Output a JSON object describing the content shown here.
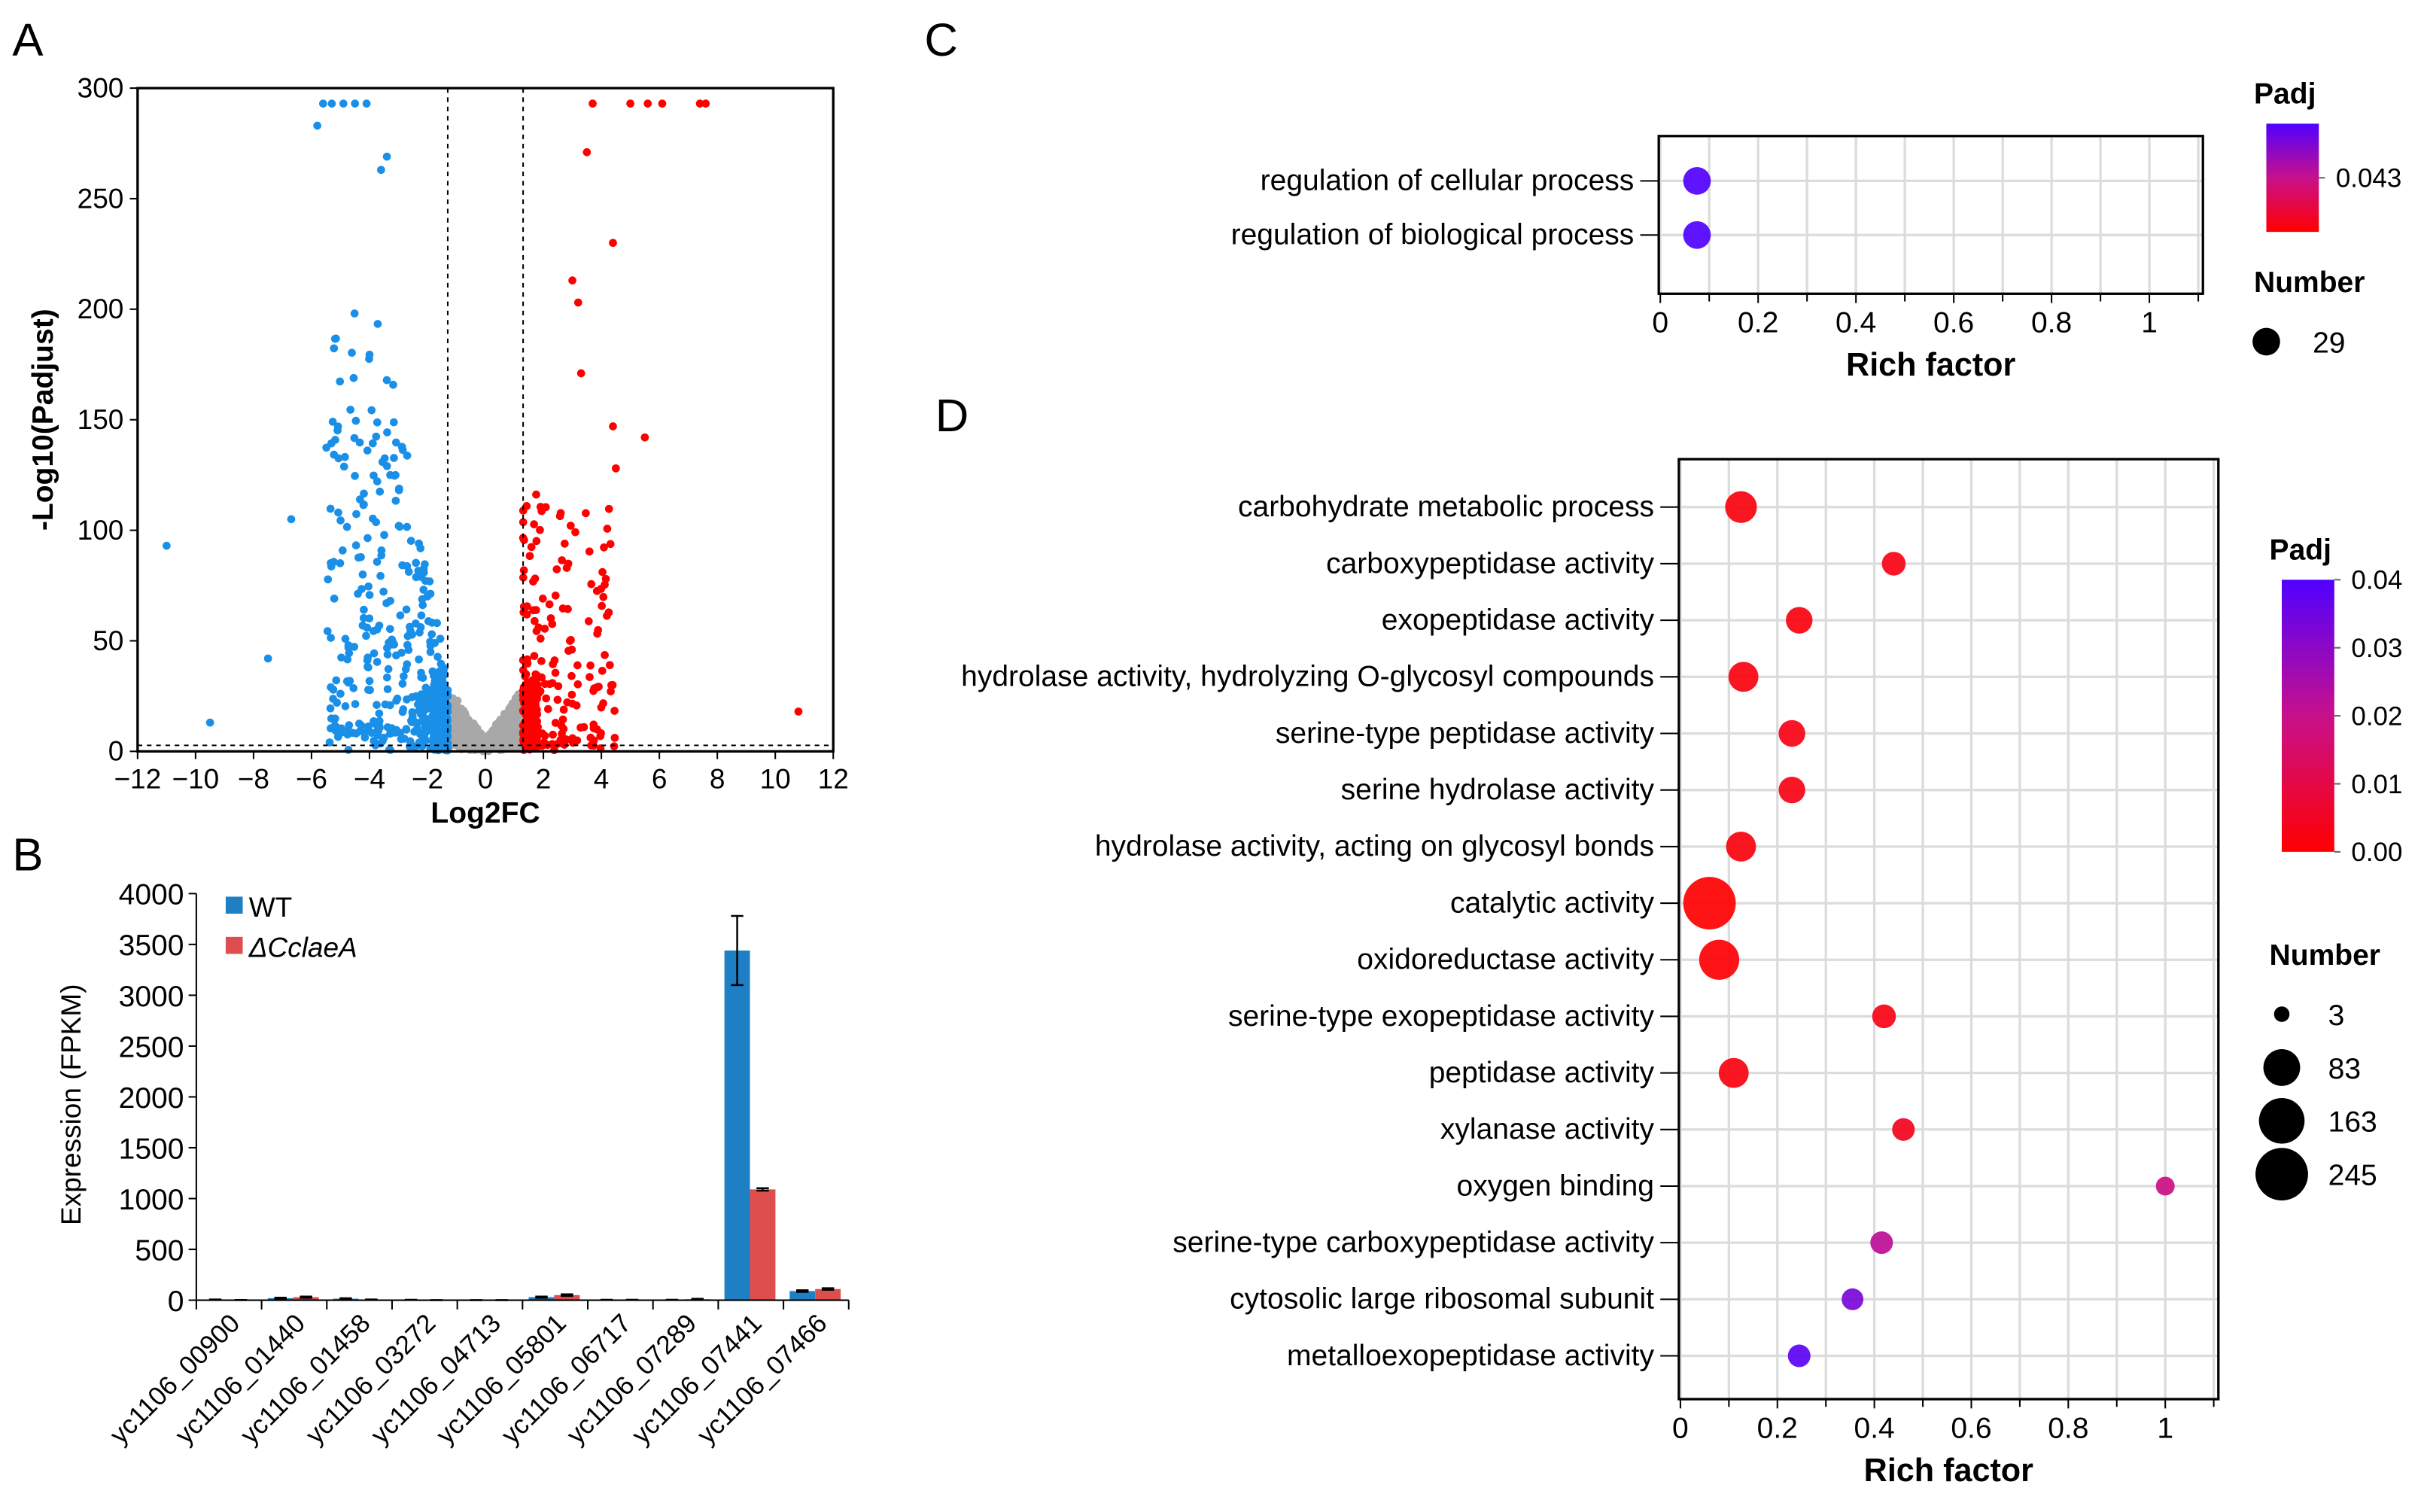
{
  "panels": {
    "a": "A",
    "b": "B",
    "c": "C",
    "d": "D"
  },
  "chart_data": [
    {
      "id": "A",
      "type": "scatter",
      "title": "",
      "xlabel": "Log2FC",
      "ylabel": "-Log10(Padjust)",
      "xlim": [
        -12,
        12
      ],
      "ylim": [
        0,
        300
      ],
      "xticks": [
        "−12",
        "−10",
        "−8",
        "−6",
        "−4",
        "−2",
        "0",
        "2",
        "4",
        "6",
        "8",
        "10",
        "12"
      ],
      "yticks": [
        "0",
        "50",
        "100",
        "150",
        "200",
        "250",
        "300"
      ],
      "thresholds": {
        "log2fc": 1.3,
        "neglog10_padj": 1.3
      },
      "colors": {
        "down": "#1a8fe8",
        "up": "#ff0000",
        "ns": "#a8a8a8"
      },
      "notable_points": [
        {
          "x": -11,
          "y": 93,
          "group": "down"
        },
        {
          "x": -9.5,
          "y": 13,
          "group": "down"
        },
        {
          "x": -7.5,
          "y": 42,
          "group": "down"
        },
        {
          "x": -6.7,
          "y": 105,
          "group": "down"
        },
        {
          "x": -5.6,
          "y": 293,
          "group": "down"
        },
        {
          "x": -5.3,
          "y": 293,
          "group": "down"
        },
        {
          "x": -4.9,
          "y": 293,
          "group": "down"
        },
        {
          "x": -4.5,
          "y": 293,
          "group": "down"
        },
        {
          "x": -4.1,
          "y": 293,
          "group": "down"
        },
        {
          "x": -5.8,
          "y": 283,
          "group": "down"
        },
        {
          "x": -3.6,
          "y": 263,
          "group": "down"
        },
        {
          "x": -3.4,
          "y": 269,
          "group": "down"
        },
        {
          "x": 3.7,
          "y": 293,
          "group": "up"
        },
        {
          "x": 5.0,
          "y": 293,
          "group": "up"
        },
        {
          "x": 5.6,
          "y": 293,
          "group": "up"
        },
        {
          "x": 6.1,
          "y": 293,
          "group": "up"
        },
        {
          "x": 7.4,
          "y": 293,
          "group": "up"
        },
        {
          "x": 7.6,
          "y": 293,
          "group": "up"
        },
        {
          "x": 3.5,
          "y": 271,
          "group": "up"
        },
        {
          "x": 4.4,
          "y": 230,
          "group": "up"
        },
        {
          "x": 3.0,
          "y": 213,
          "group": "up"
        },
        {
          "x": 3.2,
          "y": 203,
          "group": "up"
        },
        {
          "x": 3.3,
          "y": 171,
          "group": "up"
        },
        {
          "x": 4.4,
          "y": 147,
          "group": "up"
        },
        {
          "x": 5.5,
          "y": 142,
          "group": "up"
        },
        {
          "x": 4.5,
          "y": 128,
          "group": "up"
        },
        {
          "x": 10.8,
          "y": 18,
          "group": "up"
        }
      ]
    },
    {
      "id": "B",
      "type": "bar",
      "title": "",
      "xlabel": "",
      "ylabel": "Expression (FPKM)",
      "ylim": [
        0,
        4000
      ],
      "yticks": [
        "0",
        "500",
        "1000",
        "1500",
        "2000",
        "2500",
        "3000",
        "3500",
        "4000"
      ],
      "categories": [
        "yc1106_00900",
        "yc1106_01440",
        "yc1106_01458",
        "yc1106_03272",
        "yc1106_04713",
        "yc1106_05801",
        "yc1106_06717",
        "yc1106_07289",
        "yc1106_07441",
        "yc1106_07466"
      ],
      "series": [
        {
          "name": "WT",
          "color": "#1f7fc4",
          "values": [
            5,
            20,
            15,
            3,
            1,
            30,
            3,
            3,
            3440,
            90
          ],
          "errors": [
            2,
            5,
            4,
            1,
            1,
            6,
            1,
            1,
            340,
            8
          ]
        },
        {
          "name": "ΔCclaeA",
          "color": "#de4e4e",
          "values": [
            2,
            30,
            5,
            1,
            1,
            50,
            3,
            10,
            1090,
            110
          ],
          "errors": [
            1,
            6,
            2,
            1,
            1,
            8,
            1,
            4,
            12,
            8
          ]
        }
      ],
      "legend": "top-left"
    },
    {
      "id": "C",
      "type": "scatter",
      "xlabel": "Rich factor",
      "xlim": [
        0,
        1.1
      ],
      "xticks": [
        "0",
        "0.2",
        "0.4",
        "0.6",
        "0.8",
        "1"
      ],
      "categories": [
        "regulation of cellular process",
        "regulation of biological process"
      ],
      "rich_factor": [
        0.075,
        0.075
      ],
      "number": [
        29,
        29
      ],
      "padj": [
        0.043,
        0.043
      ],
      "legend_padj_title": "Padj",
      "legend_padj_ticks": [
        "0.043"
      ],
      "legend_number_title": "Number",
      "legend_number_values": [
        "29"
      ]
    },
    {
      "id": "D",
      "type": "scatter",
      "xlabel": "Rich factor",
      "xlim": [
        0,
        1.1
      ],
      "xticks": [
        "0",
        "0.2",
        "0.4",
        "0.6",
        "0.8",
        "1"
      ],
      "categories": [
        "carbohydrate metabolic process",
        "carboxypeptidase activity",
        "exopeptidase activity",
        "hydrolase activity, hydrolyzing O-glycosyl compounds",
        "serine-type peptidase activity",
        "serine hydrolase activity",
        "hydrolase activity, acting on glycosyl bonds",
        "catalytic activity",
        "oxidoreductase activity",
        "serine-type exopeptidase activity",
        "peptidase activity",
        "xylanase activity",
        "oxygen binding",
        "serine-type carboxypeptidase activity",
        "cytosolic large ribosomal subunit",
        "metalloexopeptidase activity"
      ],
      "rich_factor": [
        0.125,
        0.44,
        0.245,
        0.13,
        0.23,
        0.23,
        0.125,
        0.06,
        0.08,
        0.42,
        0.11,
        0.46,
        1.0,
        0.415,
        0.355,
        0.245
      ],
      "number": [
        50,
        15,
        25,
        40,
        25,
        25,
        40,
        245,
        110,
        15,
        40,
        12,
        5,
        12,
        10,
        12
      ],
      "padj": [
        0.002,
        0.003,
        0.002,
        0.002,
        0.003,
        0.003,
        0.002,
        0.0001,
        0.0005,
        0.003,
        0.002,
        0.004,
        0.019,
        0.022,
        0.033,
        0.038
      ],
      "legend_padj_title": "Padj",
      "legend_padj_ticks": [
        "0.04",
        "0.03",
        "0.02",
        "0.01",
        "0.00"
      ],
      "legend_number_title": "Number",
      "legend_number_values": [
        "3",
        "83",
        "163",
        "245"
      ]
    }
  ]
}
